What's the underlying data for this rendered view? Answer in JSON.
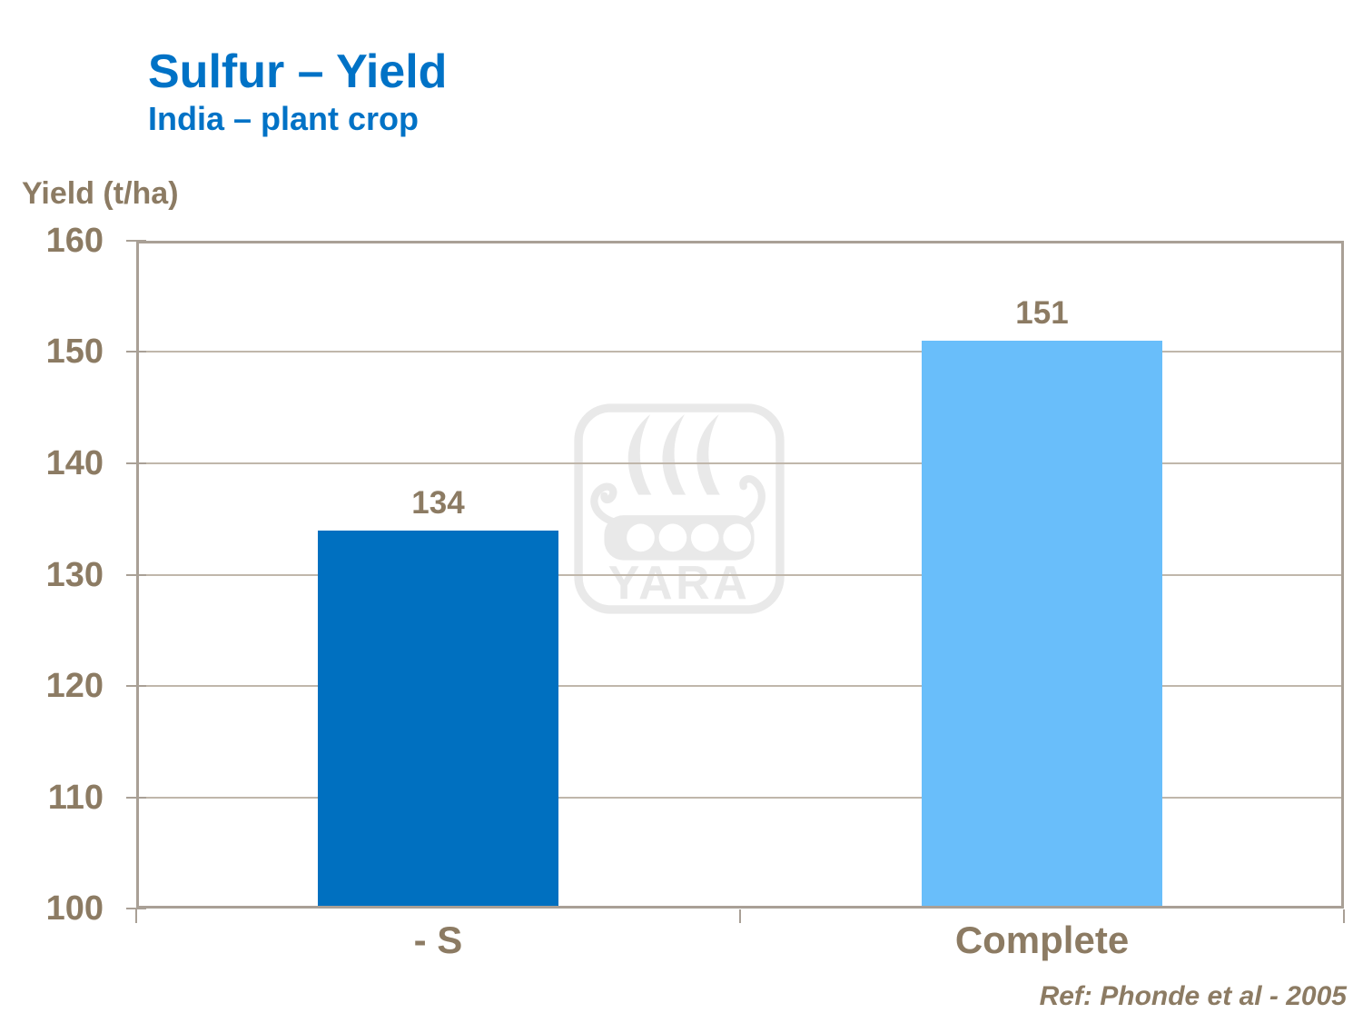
{
  "slide": {
    "title": "Sulfur – Yield",
    "subtitle": "India – plant crop",
    "y_axis_title": "Yield (t/ha)",
    "reference": "Ref: Phonde et al - 2005"
  },
  "chart_data": {
    "type": "bar",
    "title": "Sulfur – Yield",
    "subtitle": "India – plant crop",
    "categories": [
      "- S",
      "Complete"
    ],
    "values": [
      134,
      151
    ],
    "data_labels": [
      "134",
      "151"
    ],
    "ylabel": "Yield (t/ha)",
    "xlabel": "",
    "ylim": [
      100,
      160
    ],
    "yticks": [
      100,
      110,
      120,
      130,
      140,
      150,
      160
    ],
    "grid": true,
    "legend_position": "none",
    "bar_colors": [
      "#0070C0",
      "#69BEFA"
    ]
  },
  "watermark": {
    "icon": "yara-viking-ship-logo",
    "text": "YARA",
    "color": "#E9E9E9"
  },
  "colors": {
    "title_blue": "#0072C6",
    "text_brown": "#8C7B63",
    "axis_frame": "#A9A096",
    "gridline": "#C0B7AB",
    "background": "#FFFFFF"
  }
}
